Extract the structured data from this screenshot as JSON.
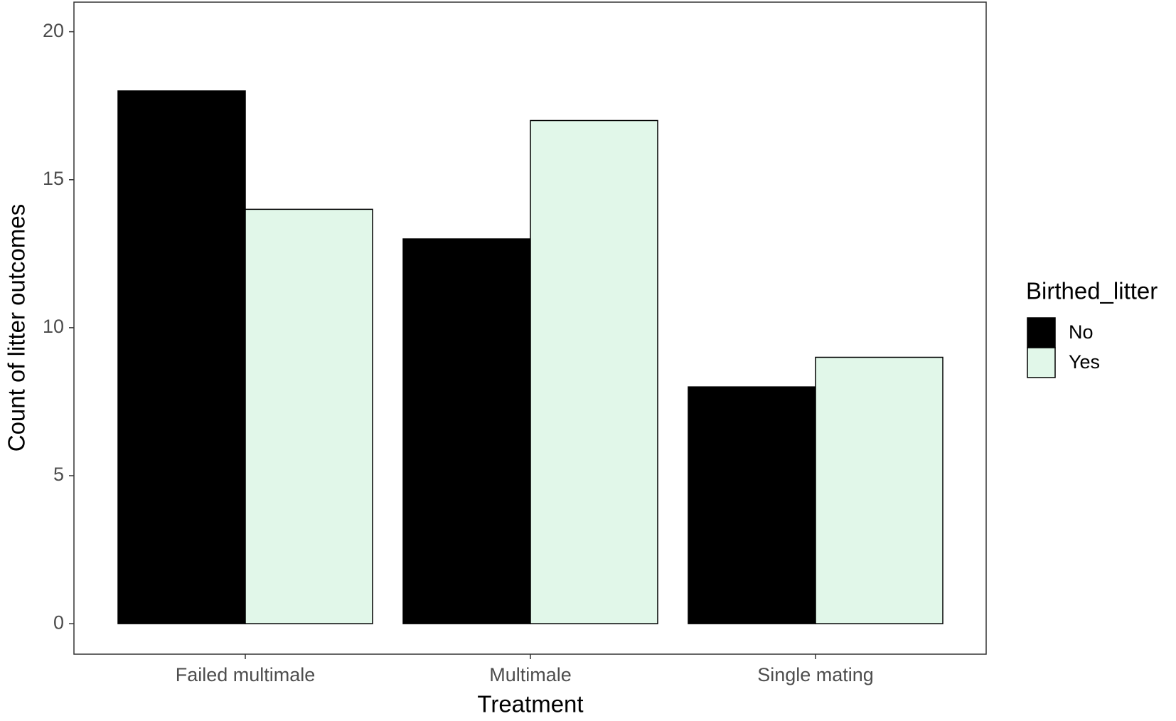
{
  "chart_data": {
    "type": "bar",
    "x_label": "Treatment",
    "y_label": "Count of litter outcomes",
    "legend_title": "Birthed_litter",
    "legend_position": "right",
    "categories": [
      "Failed multimale",
      "Multimale",
      "Single mating"
    ],
    "series": [
      {
        "name": "No",
        "color": "#000000",
        "values": [
          18,
          13,
          8
        ]
      },
      {
        "name": "Yes",
        "color": "#e1f7e9",
        "values": [
          14,
          17,
          9
        ]
      }
    ],
    "ylim": [
      -1.03,
      21.0
    ],
    "yticks": [
      0,
      5,
      10,
      15,
      20
    ],
    "grid": false
  }
}
